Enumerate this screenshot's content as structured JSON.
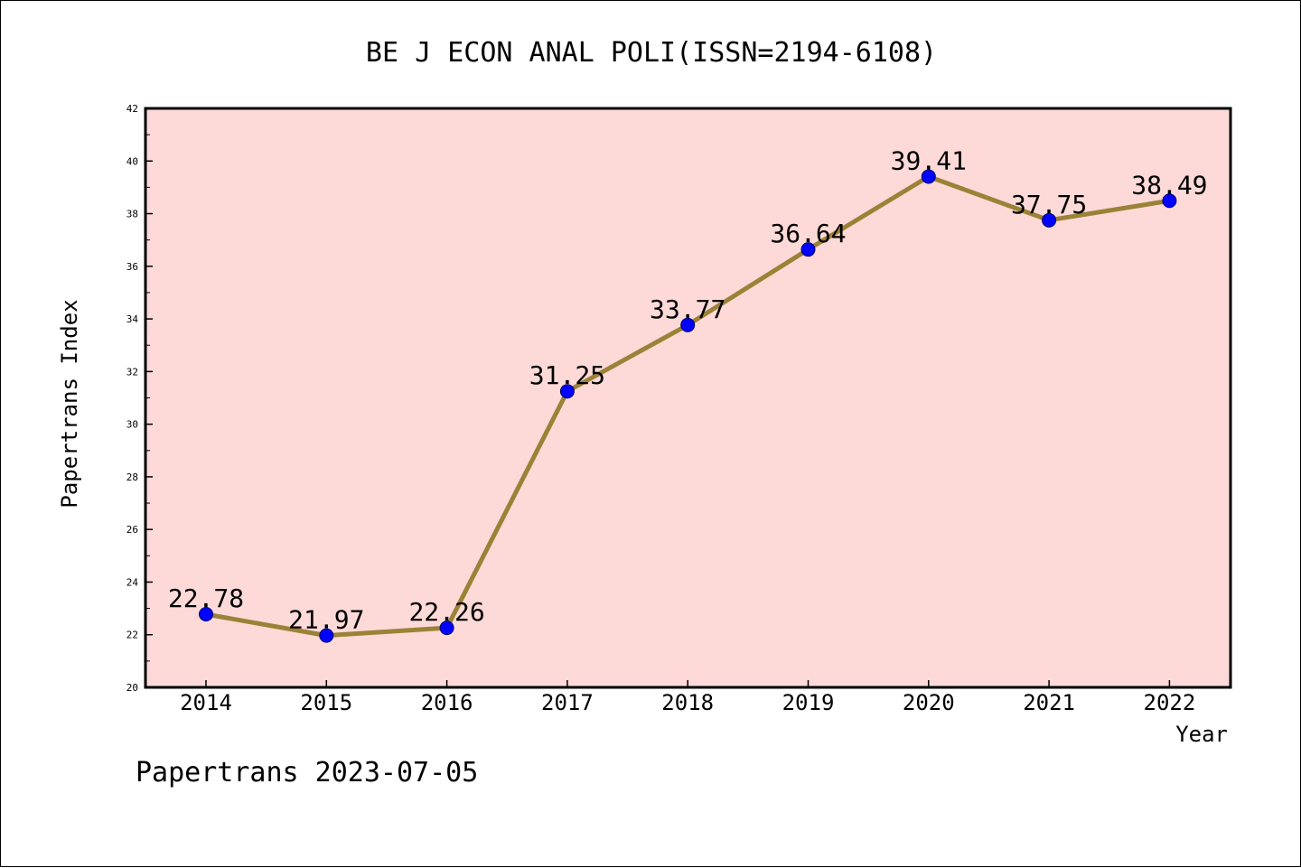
{
  "chart_data": {
    "type": "line",
    "title": "BE J ECON ANAL POLI(ISSN=2194-6108)",
    "xlabel": "Year",
    "ylabel": "Papertrans Index",
    "categories": [
      "2014",
      "2015",
      "2016",
      "2017",
      "2018",
      "2019",
      "2020",
      "2021",
      "2022"
    ],
    "series": [
      {
        "values": [
          22.78,
          21.97,
          22.26,
          31.25,
          33.77,
          36.64,
          39.41,
          37.75,
          38.49
        ],
        "labels": [
          "22.78",
          "21.97",
          "22.26",
          "31.25",
          "33.77",
          "36.64",
          "39.41",
          "37.75",
          "38.49"
        ]
      }
    ],
    "ylim": [
      20,
      42
    ],
    "yticks": [
      "20",
      "22",
      "24",
      "26",
      "28",
      "30",
      "32",
      "34",
      "36",
      "38",
      "40",
      "42"
    ],
    "grid": false,
    "legend": "none"
  },
  "footer": "Papertrans 2023-07-05",
  "colors": {
    "plot_background": "#fddad8",
    "line": "#9a8237",
    "marker": "#0000ff",
    "marker_edge": "#00006b",
    "axes": "#000000"
  }
}
